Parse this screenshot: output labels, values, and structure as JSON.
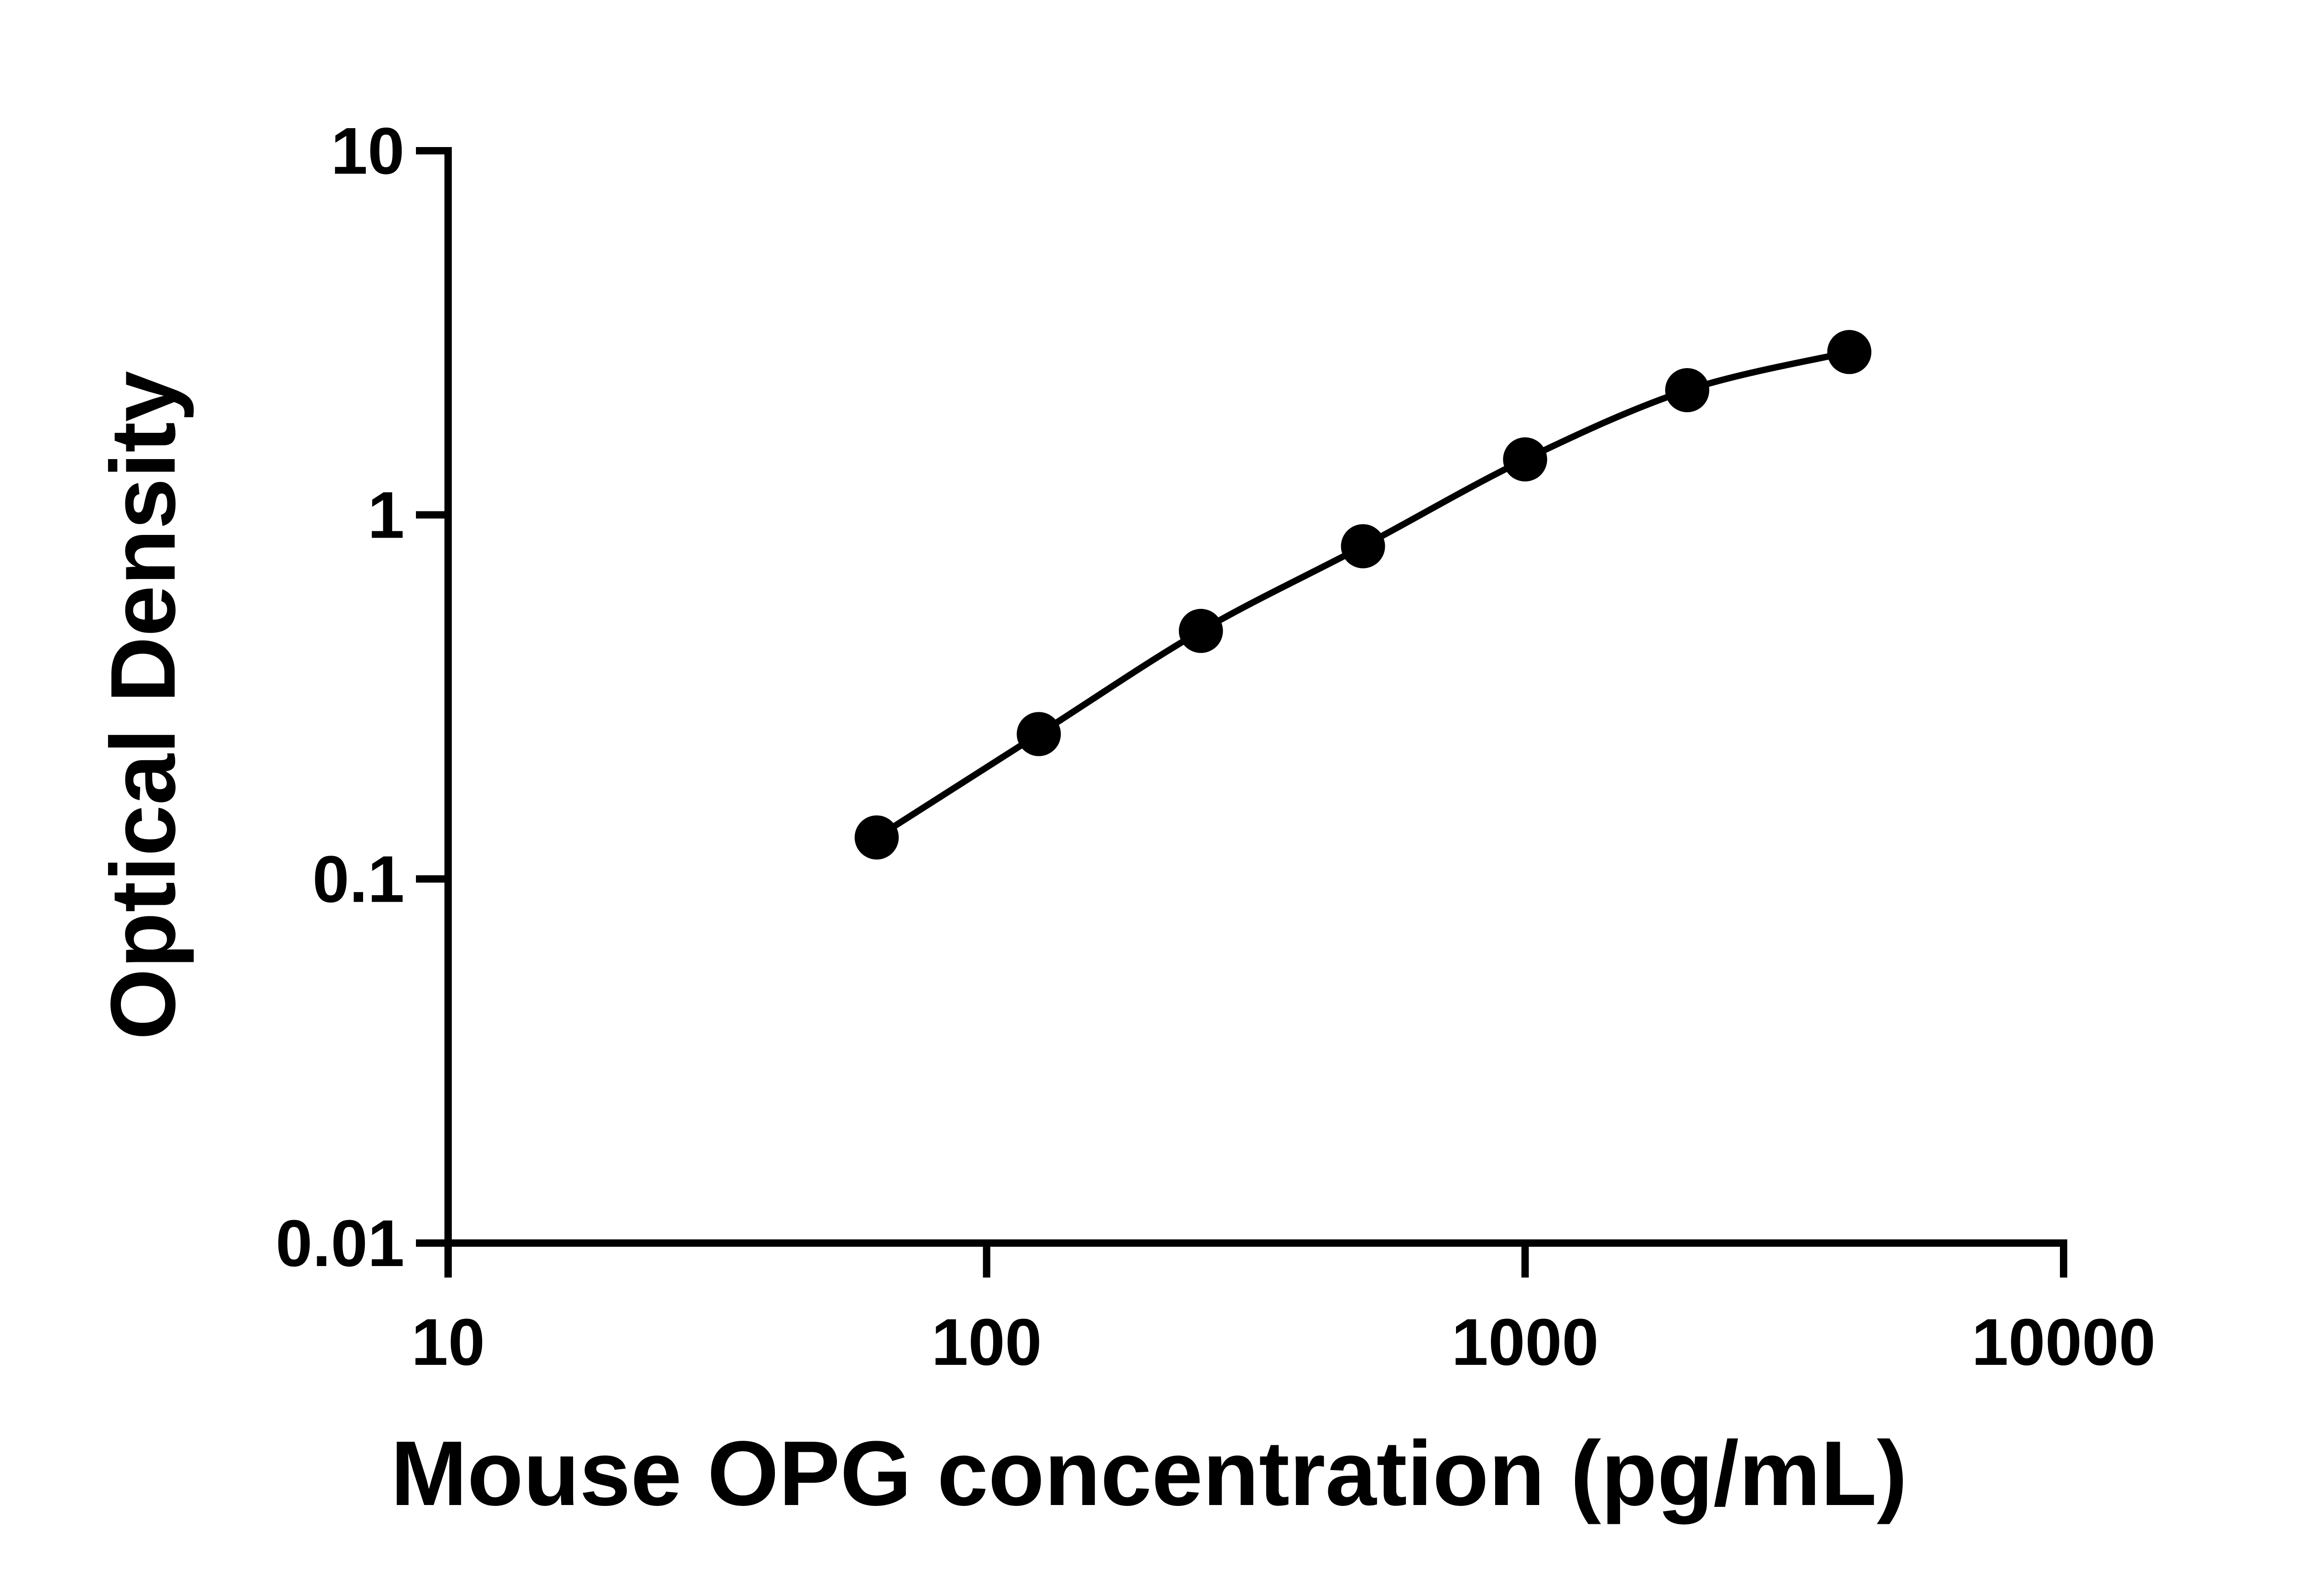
{
  "chart_data": {
    "type": "line",
    "title": "",
    "xlabel": "Mouse OPG concentration (pg/mL)",
    "ylabel": "Optical Density",
    "x_scale": "log",
    "y_scale": "log",
    "xlim": [
      10,
      10000
    ],
    "ylim": [
      0.01,
      10
    ],
    "x_ticks": [
      {
        "value": 10,
        "label": "10"
      },
      {
        "value": 100,
        "label": "100"
      },
      {
        "value": 1000,
        "label": "1000"
      },
      {
        "value": 10000,
        "label": "10000"
      }
    ],
    "y_ticks": [
      {
        "value": 0.01,
        "label": "0.01"
      },
      {
        "value": 0.1,
        "label": "0.1"
      },
      {
        "value": 1,
        "label": "1"
      },
      {
        "value": 10,
        "label": "10"
      }
    ],
    "grid": false,
    "legend": "none",
    "color": "#000000",
    "series": [
      {
        "x": [
          62.5,
          125,
          250,
          500,
          1000,
          2000,
          4000
        ],
        "y": [
          0.13,
          0.25,
          0.48,
          0.82,
          1.42,
          2.2,
          2.8
        ]
      }
    ]
  }
}
